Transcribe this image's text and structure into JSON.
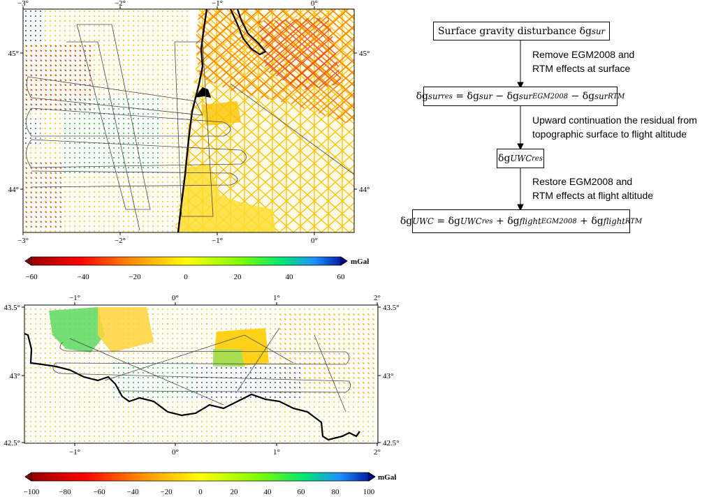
{
  "map_top": {
    "x_ticks": [
      "−3°",
      "−2°",
      "−1°",
      "0°"
    ],
    "y_ticks": [
      "45°",
      "44°"
    ]
  },
  "colorbar_top": {
    "unit": "mGal",
    "ticks": [
      "−60",
      "−40",
      "−20",
      "0",
      "20",
      "40",
      "60"
    ]
  },
  "map_bottom": {
    "x_ticks": [
      "−1°",
      "0°",
      "1°",
      "2°"
    ],
    "y_ticks": [
      "43.5°",
      "43°",
      "42.5°"
    ]
  },
  "colorbar_bottom": {
    "unit": "mGal",
    "ticks": [
      "−100",
      "−80",
      "−60",
      "−40",
      "−20",
      "0",
      "20",
      "40",
      "60",
      "80",
      "100"
    ]
  },
  "flowchart": {
    "box1": "Surface gravity disturbance δg",
    "box1_sup": "sur",
    "step1_line1": "Remove EGM2008 and",
    "step1_line2": "RTM effects at surface",
    "step2_line1": "Upward continuation the residual from",
    "step2_line2": "topographic surface to flight altitude",
    "step3_line1": "Restore EGM2008 and",
    "step3_line2": "RTM effects at flight altitude"
  },
  "colors": {
    "scale": [
      "#8b0000",
      "#ff0000",
      "#ff8c00",
      "#ffff00",
      "#00e676",
      "#1e90ff",
      "#00008b"
    ]
  }
}
